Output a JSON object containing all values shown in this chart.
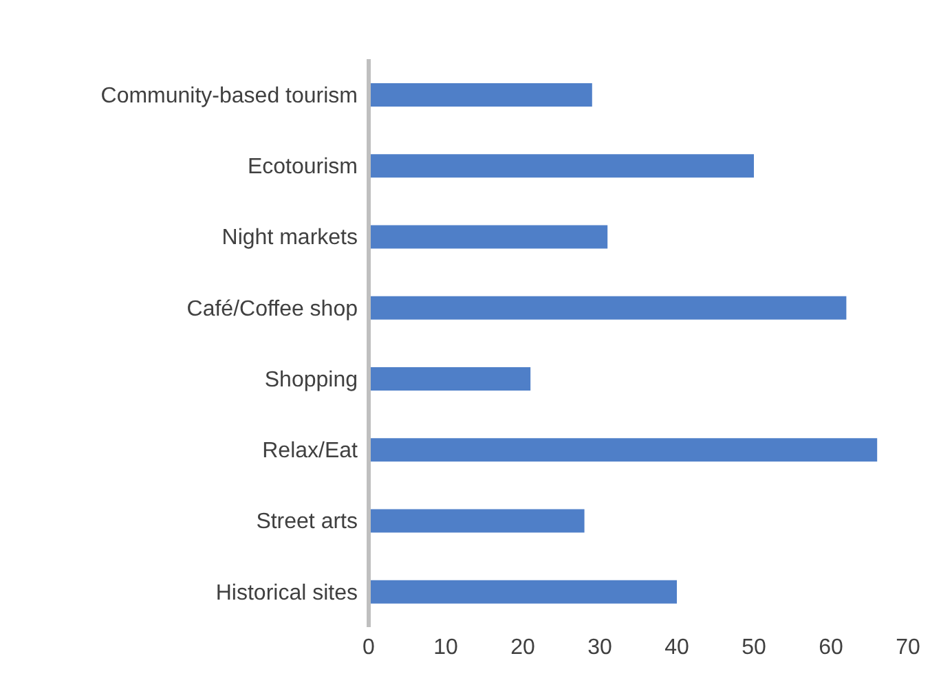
{
  "chart_data": {
    "type": "bar",
    "orientation": "horizontal",
    "categories": [
      "Community-based tourism",
      "Ecotourism",
      "Night markets",
      "Café/Coffee shop",
      "Shopping",
      "Relax/Eat",
      "Street arts",
      "Historical sites"
    ],
    "values": [
      29,
      50,
      31,
      62,
      21,
      66,
      28,
      40
    ],
    "color": "#4f7fc8",
    "xlim": [
      0,
      70
    ],
    "xticks": [
      0,
      10,
      20,
      30,
      40,
      50,
      60,
      70
    ],
    "grid": false,
    "legend": false
  }
}
